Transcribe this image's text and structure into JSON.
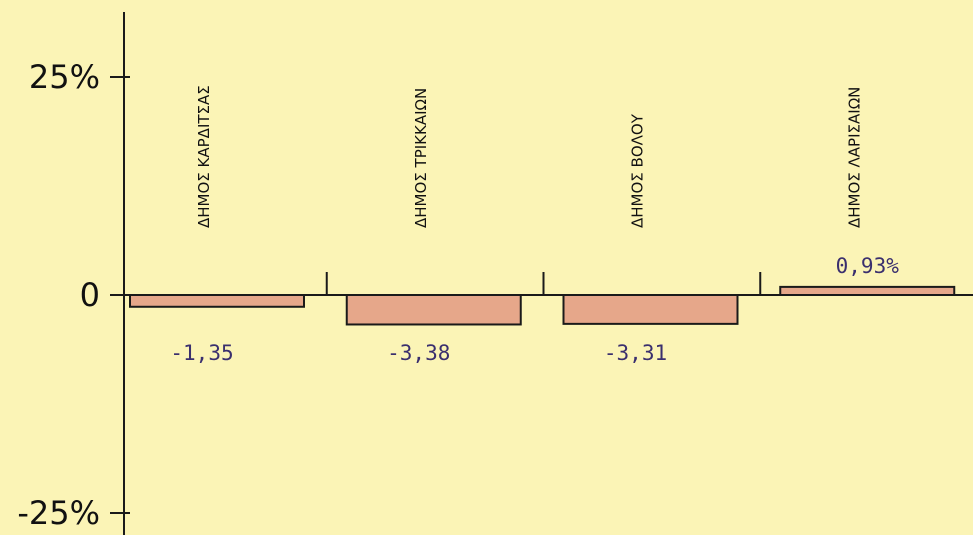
{
  "chart_data": {
    "type": "bar",
    "categories": [
      "ΔΗΜΟΣ ΚΑΡΔΙΤΣΑΣ",
      "ΔΗΜΟΣ ΤΡΙΚΚΑΙΩΝ",
      "ΔΗΜΟΣ ΒΟΛΟΥ",
      "ΔΗΜΟΣ ΛΑΡΙΣΑΙΩΝ"
    ],
    "values": [
      -1.35,
      -3.38,
      -3.31,
      0.93
    ],
    "value_labels": [
      "-1,35",
      "-3,38",
      "-3,31",
      "0,93%"
    ],
    "ylim": [
      -25,
      25
    ],
    "yticks": [
      25,
      0,
      -25
    ],
    "ytick_labels": [
      "25%",
      "0",
      "-25%"
    ],
    "title": "",
    "xlabel": "",
    "ylabel": "",
    "grid": false,
    "legend": "none",
    "colors": {
      "background": "#fbf4b6",
      "bar_fill": "#e6a78a",
      "bar_stroke": "#1a1a1a",
      "axis": "#1a1a1a",
      "data_label": "#3a2f6e"
    }
  }
}
